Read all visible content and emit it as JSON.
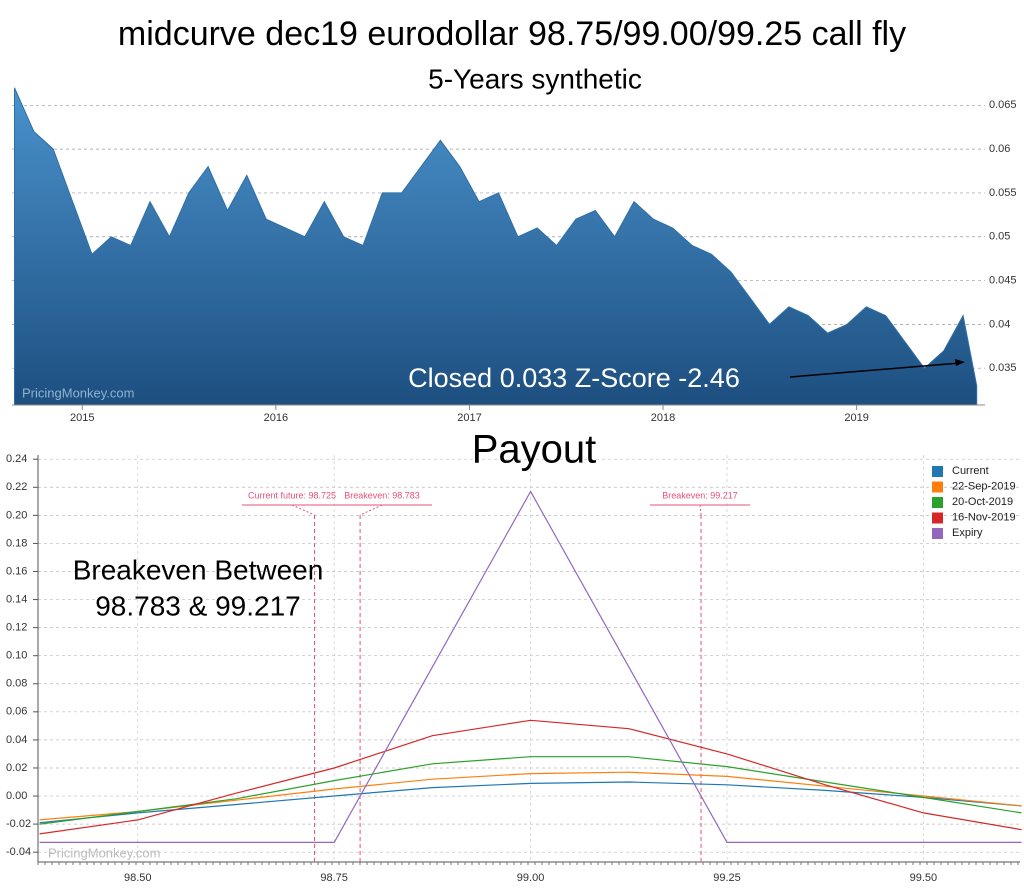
{
  "title": "midcurve dec19 eurodollar 98.75/99.00/99.25 call fly",
  "chart_data": [
    {
      "type": "area",
      "subtitle": "5-Years synthetic",
      "color": "#2f6fa8",
      "x": [
        2014.65,
        2014.75,
        2014.85,
        2014.95,
        2015.05,
        2015.15,
        2015.25,
        2015.35,
        2015.45,
        2015.55,
        2015.65,
        2015.75,
        2015.85,
        2015.95,
        2016.05,
        2016.15,
        2016.25,
        2016.35,
        2016.45,
        2016.55,
        2016.65,
        2016.75,
        2016.85,
        2016.95,
        2017.05,
        2017.15,
        2017.25,
        2017.35,
        2017.45,
        2017.55,
        2017.65,
        2017.75,
        2017.85,
        2017.95,
        2018.05,
        2018.15,
        2018.25,
        2018.35,
        2018.45,
        2018.55,
        2018.65,
        2018.75,
        2018.85,
        2018.95,
        2019.05,
        2019.15,
        2019.25,
        2019.35,
        2019.45,
        2019.55,
        2019.62
      ],
      "values": [
        0.067,
        0.062,
        0.06,
        0.054,
        0.048,
        0.05,
        0.049,
        0.054,
        0.05,
        0.055,
        0.058,
        0.053,
        0.057,
        0.052,
        0.051,
        0.05,
        0.054,
        0.05,
        0.049,
        0.055,
        0.055,
        0.058,
        0.061,
        0.058,
        0.054,
        0.055,
        0.05,
        0.051,
        0.049,
        0.052,
        0.053,
        0.05,
        0.054,
        0.052,
        0.051,
        0.049,
        0.048,
        0.046,
        0.043,
        0.04,
        0.042,
        0.041,
        0.039,
        0.04,
        0.042,
        0.041,
        0.038,
        0.035,
        0.037,
        0.041,
        0.033
      ],
      "xlim": [
        2014.637,
        2019.663
      ],
      "xticks": [
        2015,
        2016,
        2017,
        2018,
        2019
      ],
      "ylim": [
        0.0308,
        0.0696
      ],
      "yticks": [
        0.035,
        0.04,
        0.045,
        0.05,
        0.055,
        0.06,
        0.065
      ],
      "grid": true,
      "annotation": "Closed 0.033 Z-Score -2.46",
      "watermark": "PricingMonkey.com"
    },
    {
      "type": "line",
      "title": "Payout",
      "x": [
        98.375,
        98.5,
        98.625,
        98.75,
        98.875,
        99.0,
        99.125,
        99.25,
        99.375,
        99.5,
        99.625
      ],
      "series": [
        {
          "name": "Current",
          "color": "#1f77b4",
          "values": [
            -0.019,
            -0.012,
            -0.006,
            0.0,
            0.006,
            0.009,
            0.01,
            0.008,
            0.004,
            -0.001,
            -0.007
          ]
        },
        {
          "name": "22-Sep-2019",
          "color": "#ff7f0e",
          "values": [
            -0.017,
            -0.011,
            -0.003,
            0.005,
            0.012,
            0.016,
            0.017,
            0.014,
            0.007,
            0.0,
            -0.007
          ]
        },
        {
          "name": "20-Oct-2019",
          "color": "#2ca02c",
          "values": [
            -0.02,
            -0.011,
            -0.002,
            0.011,
            0.023,
            0.028,
            0.028,
            0.021,
            0.01,
            -0.001,
            -0.012
          ]
        },
        {
          "name": "16-Nov-2019",
          "color": "#d62728",
          "values": [
            -0.027,
            -0.017,
            0.002,
            0.02,
            0.043,
            0.054,
            0.048,
            0.03,
            0.008,
            -0.012,
            -0.024
          ]
        },
        {
          "name": "Expiry",
          "color": "#9467bd",
          "values": [
            -0.033,
            -0.033,
            -0.033,
            -0.033,
            0.092,
            0.217,
            0.092,
            -0.033,
            -0.033,
            -0.033,
            -0.033
          ]
        }
      ],
      "xlim": [
        98.373,
        99.623
      ],
      "xticks": [
        {
          "value": 98.5,
          "label": "98.50"
        },
        98.75,
        {
          "value": 99.0,
          "label": "99.00"
        },
        99.25,
        {
          "value": 99.5,
          "label": "99.50"
        }
      ],
      "ylim": [
        -0.047,
        0.243
      ],
      "yticks": [
        -0.04,
        -0.02,
        {
          "value": 0,
          "label": "0.00"
        },
        0.02,
        0.04,
        0.06,
        0.08,
        {
          "value": 0.1,
          "label": "0.10"
        },
        0.12,
        0.14,
        0.16,
        0.18,
        {
          "value": 0.2,
          "label": "0.20"
        },
        0.22,
        0.24
      ],
      "grid": true,
      "legend": "top-right",
      "vlines": [
        {
          "x": 98.725,
          "label": "Current future: 98.725"
        },
        {
          "x": 98.783,
          "label": "Breakeven: 98.783"
        },
        {
          "x": 99.217,
          "label": "Breakeven: 99.217"
        }
      ],
      "annotation_lines": [
        "Breakeven Between",
        "98.783 & 99.217"
      ],
      "watermark": "PricingMonkey.com"
    }
  ]
}
